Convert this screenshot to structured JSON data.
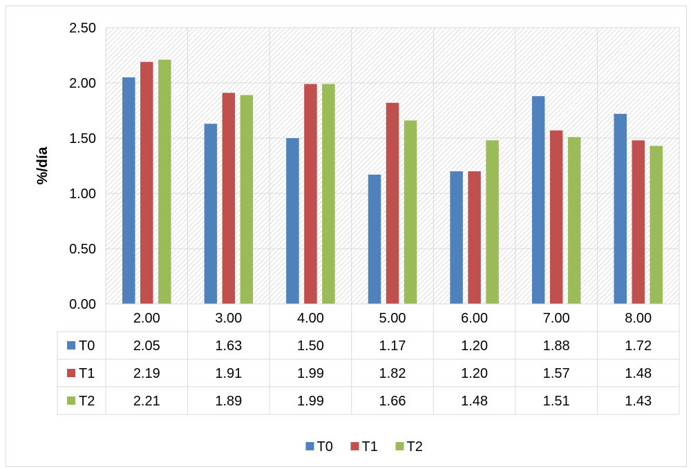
{
  "chart_data": {
    "type": "bar",
    "categories": [
      "2.00",
      "3.00",
      "4.00",
      "5.00",
      "6.00",
      "7.00",
      "8.00"
    ],
    "series": [
      {
        "name": "T0",
        "color": "#4f81bd",
        "values": [
          2.05,
          1.63,
          1.5,
          1.17,
          1.2,
          1.88,
          1.72
        ],
        "labels": [
          "2.05",
          "1.63",
          "1.50",
          "1.17",
          "1.20",
          "1.88",
          "1.72"
        ]
      },
      {
        "name": "T1",
        "color": "#c0504d",
        "values": [
          2.19,
          1.91,
          1.99,
          1.82,
          1.2,
          1.57,
          1.48
        ],
        "labels": [
          "2.19",
          "1.91",
          "1.99",
          "1.82",
          "1.20",
          "1.57",
          "1.48"
        ]
      },
      {
        "name": "T2",
        "color": "#9bbb59",
        "values": [
          2.21,
          1.89,
          1.99,
          1.66,
          1.48,
          1.51,
          1.43
        ],
        "labels": [
          "2.21",
          "1.89",
          "1.99",
          "1.66",
          "1.48",
          "1.51",
          "1.43"
        ]
      }
    ],
    "ylabel": "%/día",
    "ylim": [
      0,
      2.5
    ],
    "yticks": [
      "0.00",
      "0.50",
      "1.00",
      "1.50",
      "2.00",
      "2.50"
    ],
    "grid": true,
    "plot_background": "hatched light gray",
    "data_table": true,
    "legend_position": "bottom"
  }
}
